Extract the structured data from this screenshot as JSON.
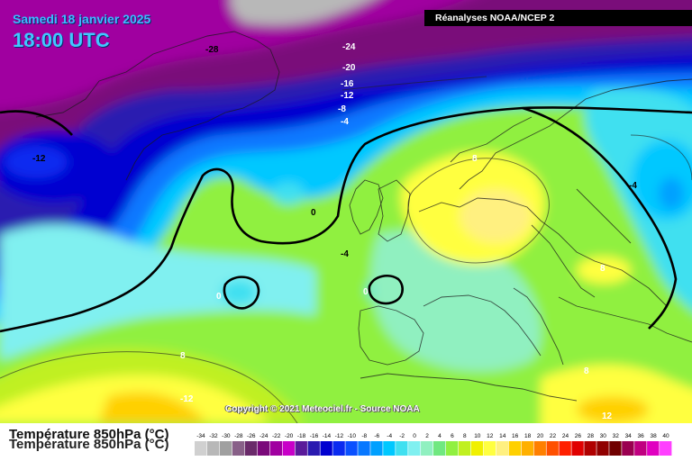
{
  "header": {
    "date": "Samedi 18 janvier 2025",
    "time": "18:00 UTC",
    "source": "Réanalyses NOAA/NCEP 2"
  },
  "map": {
    "copyright": "Copyright © 2021 Meteociel.fr - Source NOAA",
    "contour_labels": [
      "-28",
      "-24",
      "-20",
      "-16",
      "-12",
      "-8",
      "-4",
      "-12",
      "0",
      "-4",
      "-4",
      "0",
      "0",
      "8",
      "8",
      "8",
      "-12",
      "12"
    ]
  },
  "footer": {
    "title": "Température 850hPa (°C)"
  },
  "legend": {
    "ticks": [
      "-34",
      "-32",
      "-30",
      "-28",
      "-26",
      "-24",
      "-22",
      "-20",
      "-18",
      "-16",
      "-14",
      "-12",
      "-10",
      "-8",
      "-6",
      "-4",
      "-2",
      "0",
      "2",
      "4",
      "6",
      "8",
      "10",
      "12",
      "14",
      "16",
      "18",
      "20",
      "22",
      "24",
      "26",
      "28",
      "30",
      "32",
      "34",
      "36",
      "38",
      "40"
    ],
    "colors": [
      "#d0d0d0",
      "#b8b8b8",
      "#a0a0a0",
      "#886088",
      "#6a2a6a",
      "#7a0a7a",
      "#a000a0",
      "#c800c8",
      "#5a1a9a",
      "#2a1ab0",
      "#0000d0",
      "#0a2af0",
      "#0a50ff",
      "#0878ff",
      "#00a0ff",
      "#00c8ff",
      "#40e0f0",
      "#80f0f0",
      "#90f0c0",
      "#70e880",
      "#90f040",
      "#c0f020",
      "#f0f000",
      "#ffff40",
      "#fff080",
      "#ffd000",
      "#ffb000",
      "#ff8000",
      "#ff5000",
      "#ff2000",
      "#e00000",
      "#b00000",
      "#900000",
      "#700000",
      "#9a0050",
      "#c00080",
      "#e000c0",
      "#ff40ff"
    ]
  }
}
